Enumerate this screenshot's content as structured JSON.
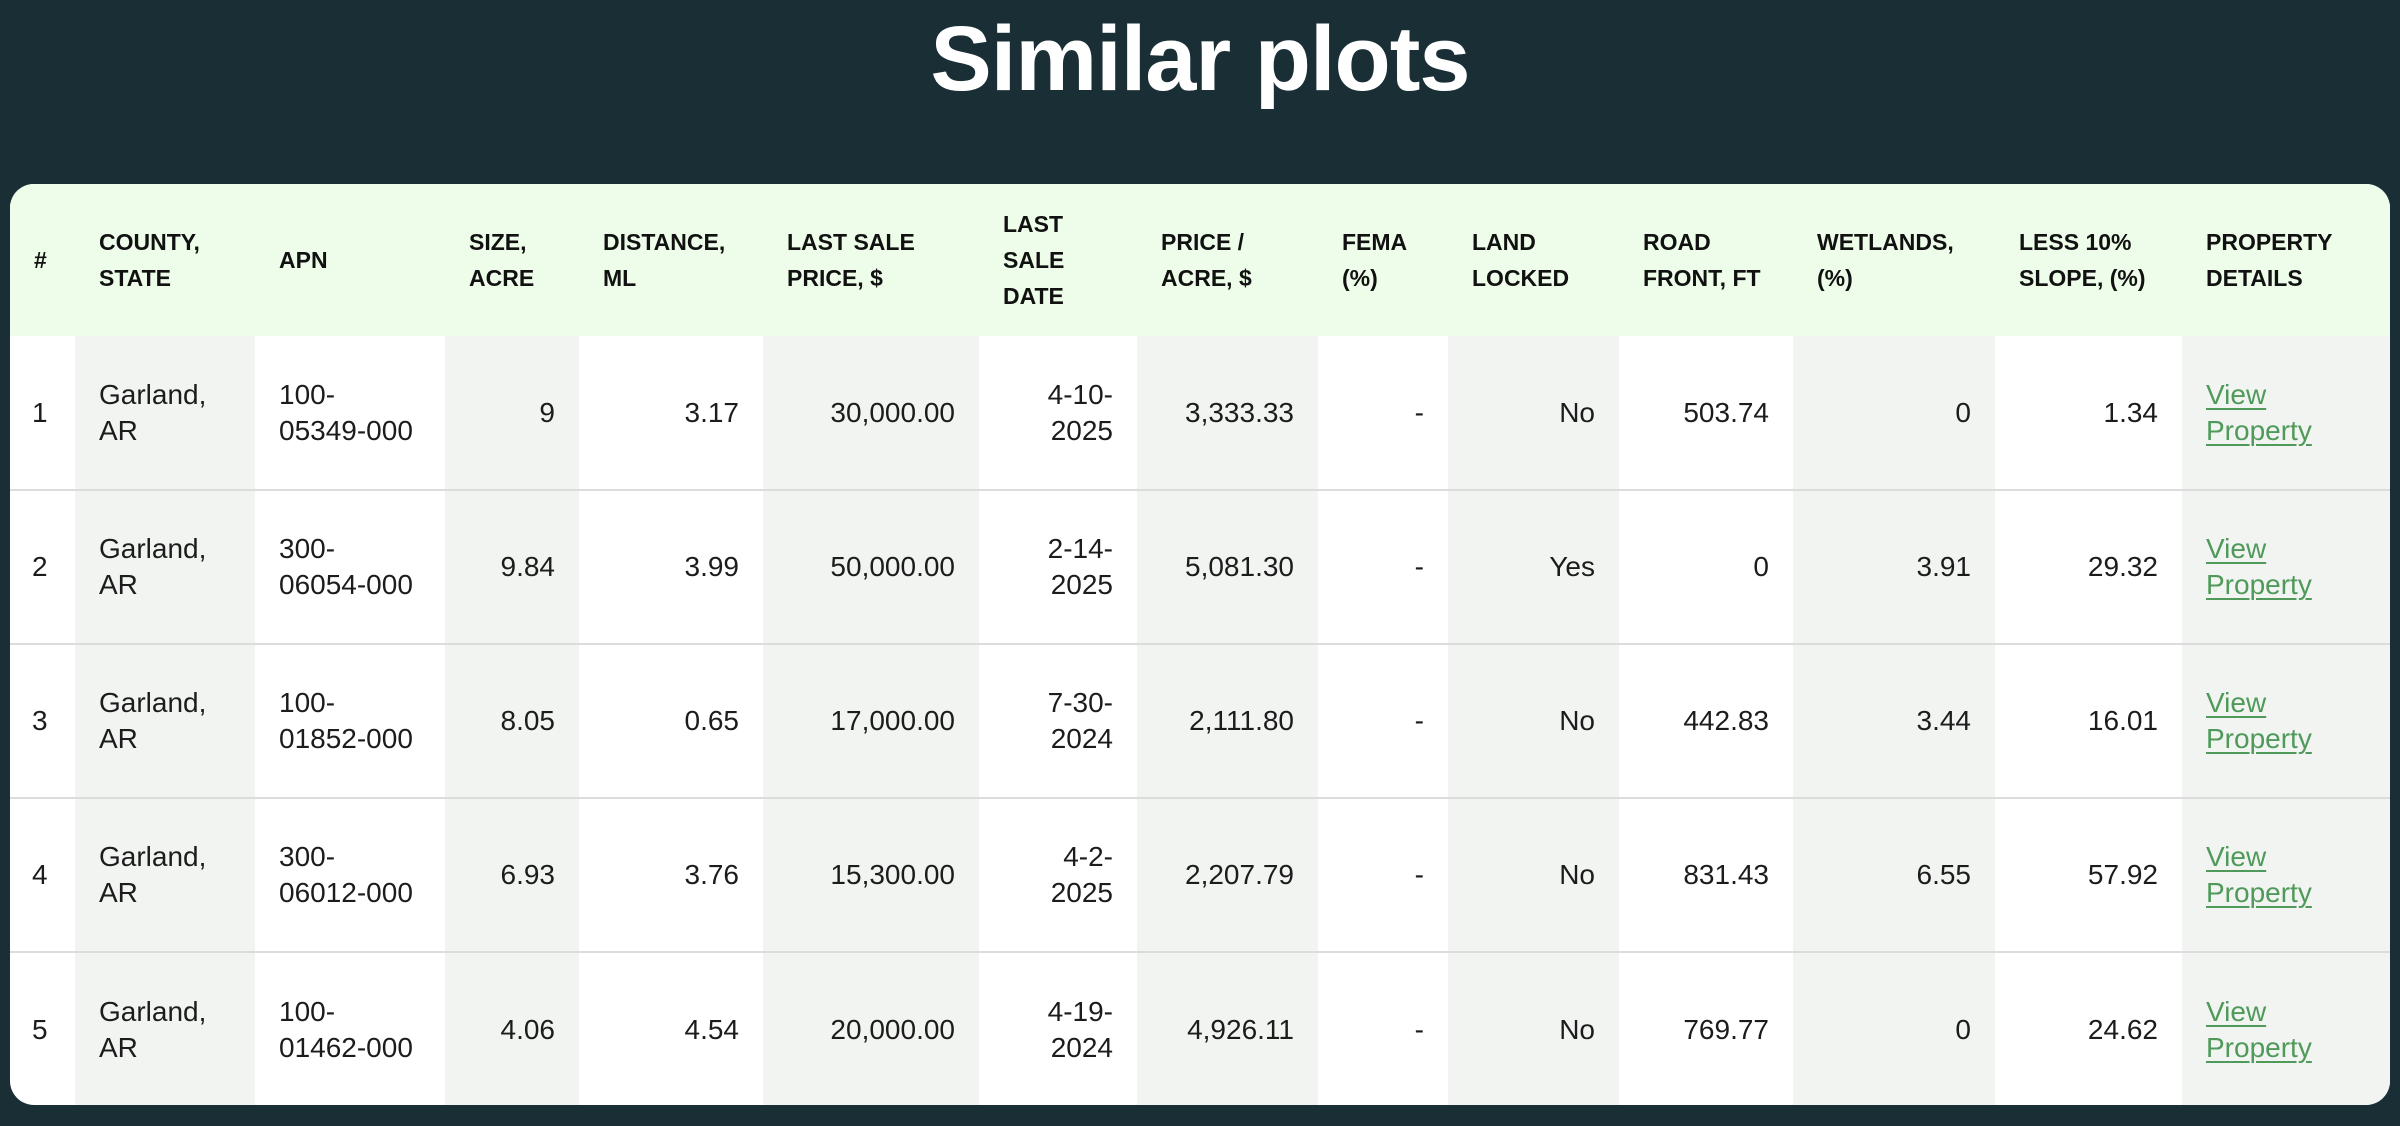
{
  "page": {
    "title": "Similar plots"
  },
  "table": {
    "columns": [
      "#",
      "COUNTY,\nSTATE",
      "APN",
      "SIZE,\nACRE",
      "DISTANCE,\nML",
      "LAST SALE\nPRICE, $",
      "LAST\nSALE\nDATE",
      "PRICE /\nACRE, $",
      "FEMA\n(%)",
      "LAND\nLOCKED",
      "ROAD\nFRONT, FT",
      "WETLANDS,\n(%)",
      "LESS 10%\nSLOPE, (%)",
      "PROPERTY\nDETAILS"
    ],
    "rows": [
      {
        "num": "1",
        "county": "Garland, AR",
        "apn": "100-05349-000",
        "size": "9",
        "distance": "3.17",
        "last_sale_price": "30,000.00",
        "last_sale_date": "4-10-2025",
        "price_per_acre": "3,333.33",
        "fema": "-",
        "land_locked": "No",
        "road_front": "503.74",
        "wetlands": "0",
        "slope": "1.34",
        "details": "View Property"
      },
      {
        "num": "2",
        "county": "Garland, AR",
        "apn": "300-06054-000",
        "size": "9.84",
        "distance": "3.99",
        "last_sale_price": "50,000.00",
        "last_sale_date": "2-14-2025",
        "price_per_acre": "5,081.30",
        "fema": "-",
        "land_locked": "Yes",
        "road_front": "0",
        "wetlands": "3.91",
        "slope": "29.32",
        "details": "View Property"
      },
      {
        "num": "3",
        "county": "Garland, AR",
        "apn": "100-01852-000",
        "size": "8.05",
        "distance": "0.65",
        "last_sale_price": "17,000.00",
        "last_sale_date": "7-30-2024",
        "price_per_acre": "2,111.80",
        "fema": "-",
        "land_locked": "No",
        "road_front": "442.83",
        "wetlands": "3.44",
        "slope": "16.01",
        "details": "View Property"
      },
      {
        "num": "4",
        "county": "Garland, AR",
        "apn": "300-06012-000",
        "size": "6.93",
        "distance": "3.76",
        "last_sale_price": "15,300.00",
        "last_sale_date": "4-2-2025",
        "price_per_acre": "2,207.79",
        "fema": "-",
        "land_locked": "No",
        "road_front": "831.43",
        "wetlands": "6.55",
        "slope": "57.92",
        "details": "View Property"
      },
      {
        "num": "5",
        "county": "Garland, AR",
        "apn": "100-01462-000",
        "size": "4.06",
        "distance": "4.54",
        "last_sale_price": "20,000.00",
        "last_sale_date": "4-19-2024",
        "price_per_acre": "4,926.11",
        "fema": "-",
        "land_locked": "No",
        "road_front": "769.77",
        "wetlands": "0",
        "slope": "24.62",
        "details": "View Property"
      }
    ]
  },
  "colors": {
    "background": "#1a2e35",
    "header_row": "#edfde9",
    "shaded_column": "#f2f4f2",
    "link": "#4f9a5a"
  }
}
